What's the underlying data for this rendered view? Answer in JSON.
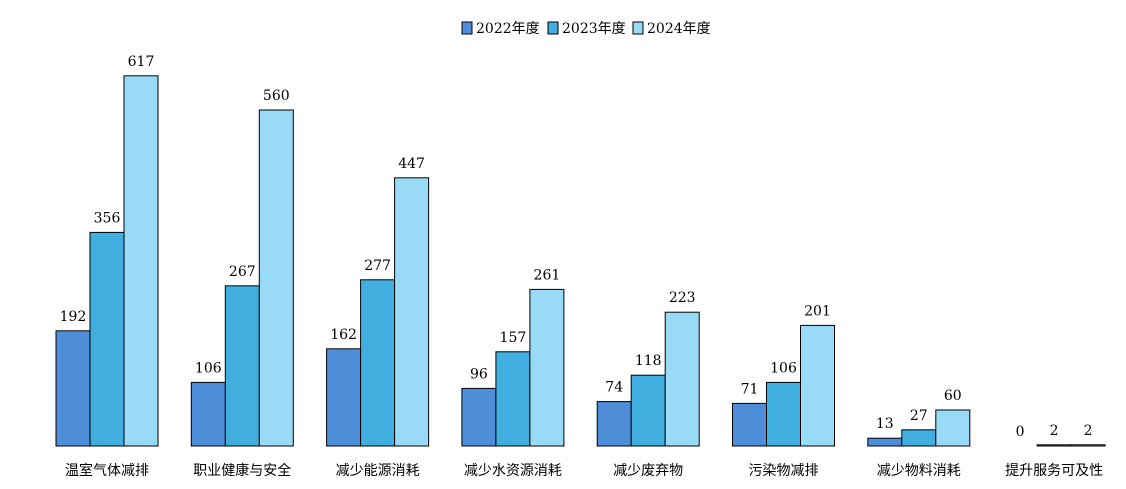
{
  "chart_data": {
    "type": "bar",
    "title": "",
    "xlabel": "",
    "ylabel": "",
    "ylim": [
      0,
      650
    ],
    "grid": false,
    "legend_position": "top-center",
    "categories": [
      "温室气体减排",
      "职业健康与安全",
      "减少能源消耗",
      "减少水资源消耗",
      "减少废弃物",
      "污染物减排",
      "减少物料消耗",
      "提升服务可及性"
    ],
    "series": [
      {
        "name": "2022年度",
        "color": "#4e8ed8",
        "values": [
          192,
          106,
          162,
          96,
          74,
          71,
          13,
          0
        ]
      },
      {
        "name": "2023年度",
        "color": "#41aee0",
        "values": [
          356,
          267,
          277,
          157,
          118,
          106,
          27,
          2
        ]
      },
      {
        "name": "2024年度",
        "color": "#99dbf7",
        "values": [
          617,
          560,
          447,
          261,
          223,
          201,
          60,
          2
        ]
      }
    ]
  }
}
